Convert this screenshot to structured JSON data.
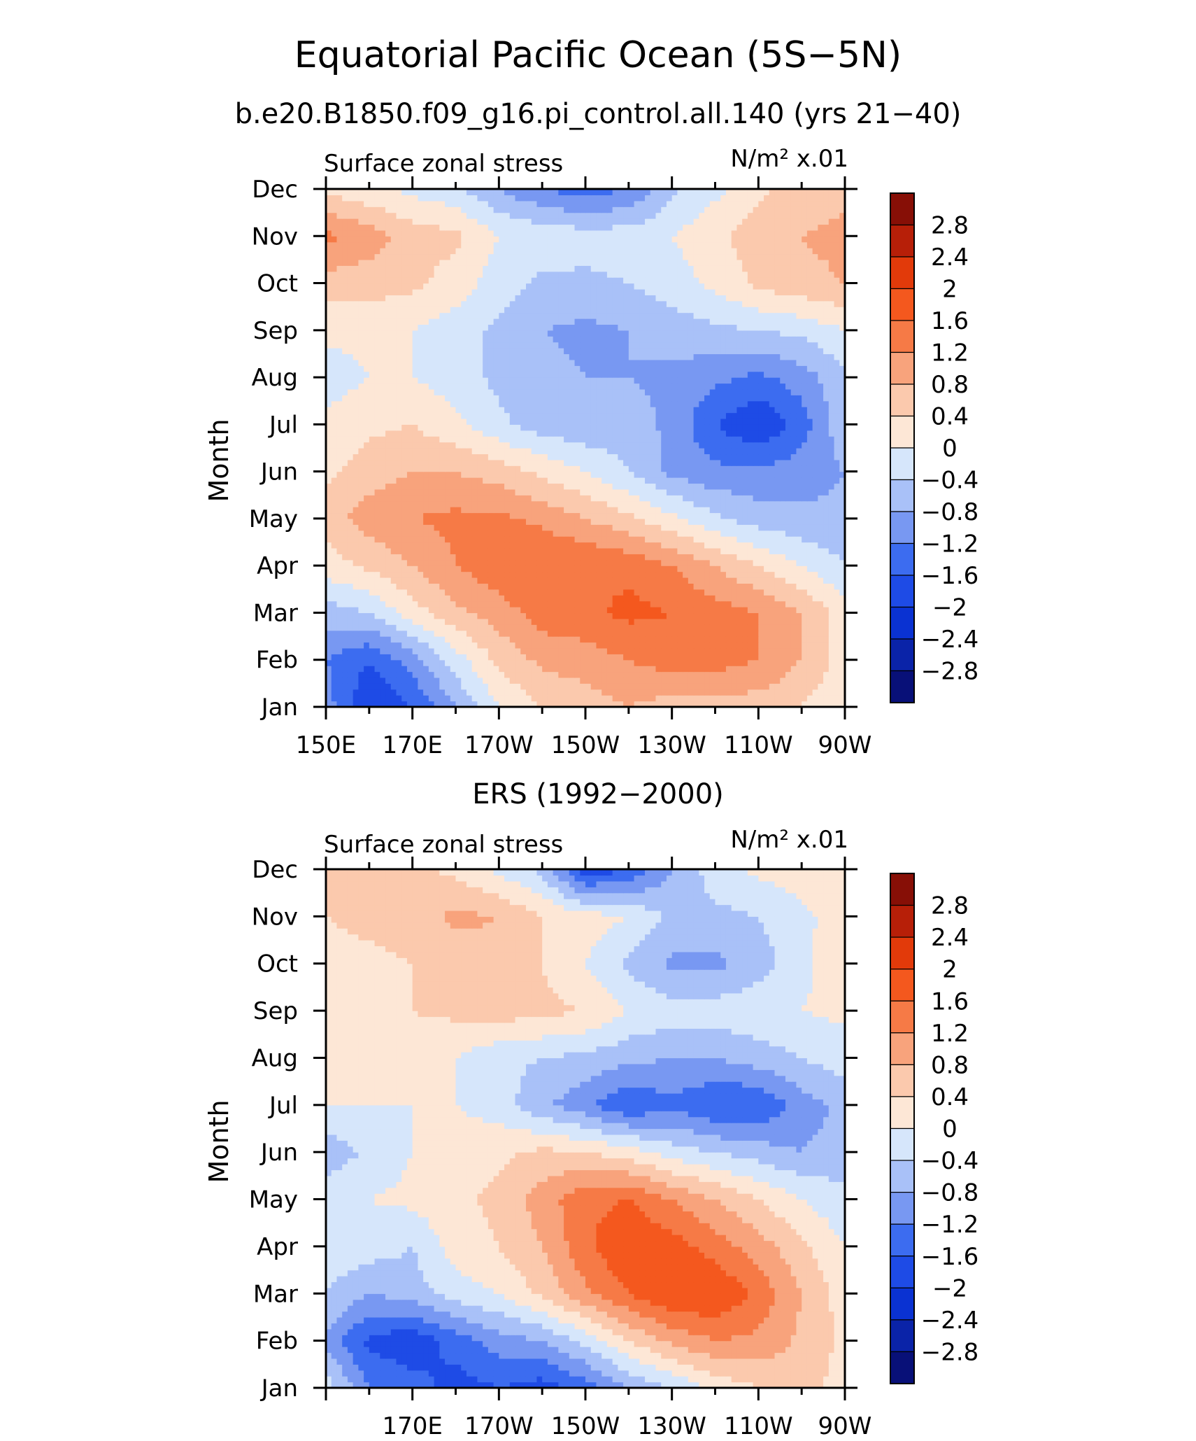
{
  "title": "Equatorial Pacific Ocean (5S−5N)",
  "colorbar_levels": [
    "2.8",
    "2.4",
    "2",
    "1.6",
    "1.2",
    "0.8",
    "0.4",
    "0",
    "−0.4",
    "−0.8",
    "−1.2",
    "−1.6",
    "−2",
    "−2.4",
    "−2.8"
  ],
  "palette": {
    "n_3.0": "#081078",
    "n_2.6": "#0a23a8",
    "n_2.2": "#0a32d2",
    "n_1.8": "#1e4be6",
    "n_1.4": "#3c6cf0",
    "n_1.0": "#7898f2",
    "n_0.6": "#a9c1f8",
    "n_0.2": "#d6e6fb",
    "p_0.2": "#fde7d6",
    "p_0.6": "#fbc9ad",
    "p_1.0": "#f8a37c",
    "p_1.4": "#f67a46",
    "p_1.8": "#f4581e",
    "p_2.2": "#e23a0a",
    "p_2.6": "#b71f08",
    "p_3.0": "#870f06"
  },
  "chart_data": [
    {
      "type": "heatmap",
      "title": "b.e20.B1850.f09_g16.pi_control.all.140 (yrs 21−40)",
      "left_label": "Surface zonal stress",
      "right_label": "N/m² x.01",
      "ylabel": "Month",
      "xlabel": "",
      "x_labels": [
        "150E",
        "170E",
        "170W",
        "150W",
        "130W",
        "110W",
        "90W"
      ],
      "x_label_lon": [
        150,
        170,
        190,
        210,
        230,
        250,
        270
      ],
      "xlim": [
        150,
        270
      ],
      "months": [
        "Jan",
        "Feb",
        "Mar",
        "Apr",
        "May",
        "Jun",
        "Jul",
        "Aug",
        "Sep",
        "Oct",
        "Nov",
        "Dec"
      ],
      "lon": [
        150,
        160,
        170,
        180,
        190,
        200,
        210,
        220,
        230,
        240,
        250,
        260,
        270
      ],
      "values": [
        [
          -1.0,
          -2.0,
          -1.6,
          -0.8,
          0.0,
          0.4,
          0.6,
          0.8,
          0.6,
          0.6,
          0.6,
          0.4,
          0.0
        ],
        [
          -1.2,
          -1.6,
          -1.0,
          -0.2,
          0.5,
          0.9,
          1.0,
          1.2,
          1.4,
          1.4,
          1.2,
          0.8,
          0.2
        ],
        [
          -0.6,
          -0.4,
          0.2,
          0.7,
          1.0,
          1.4,
          1.5,
          1.7,
          1.6,
          1.4,
          1.2,
          0.8,
          0.2
        ],
        [
          0.2,
          0.5,
          0.8,
          1.2,
          1.5,
          1.6,
          1.6,
          1.5,
          1.2,
          0.8,
          0.4,
          0.0,
          -0.4
        ],
        [
          0.6,
          1.0,
          1.2,
          1.3,
          1.3,
          1.1,
          0.8,
          0.5,
          0.1,
          -0.3,
          -0.6,
          -0.7,
          -0.7
        ],
        [
          0.3,
          0.6,
          0.8,
          0.8,
          0.6,
          0.3,
          0.0,
          -0.4,
          -0.9,
          -1.1,
          -1.1,
          -1.0,
          -0.8
        ],
        [
          0.1,
          0.3,
          0.4,
          0.1,
          -0.3,
          -0.6,
          -0.7,
          -0.6,
          -0.9,
          -1.6,
          -2.0,
          -1.4,
          -0.5
        ],
        [
          -0.2,
          0.0,
          0.0,
          -0.2,
          -0.5,
          -0.7,
          -0.8,
          -0.8,
          -0.9,
          -1.1,
          -1.3,
          -1.0,
          -0.5
        ],
        [
          0.1,
          0.1,
          0.0,
          -0.2,
          -0.5,
          -0.8,
          -0.9,
          -0.8,
          -0.6,
          -0.5,
          -0.4,
          -0.3,
          0.0
        ],
        [
          0.6,
          0.6,
          0.5,
          0.2,
          -0.2,
          -0.5,
          -0.5,
          -0.4,
          -0.2,
          0.1,
          0.5,
          0.7,
          0.8
        ],
        [
          1.3,
          1.0,
          0.6,
          0.5,
          0.0,
          -0.1,
          -0.2,
          -0.2,
          0.0,
          0.3,
          0.6,
          0.8,
          0.9
        ],
        [
          0.3,
          0.1,
          -0.1,
          -0.3,
          -0.8,
          -1.2,
          -1.4,
          -1.2,
          -0.5,
          -0.1,
          0.3,
          0.6,
          0.7
        ]
      ],
      "levels": [
        -2.8,
        -2.4,
        -2.0,
        -1.6,
        -1.2,
        -0.8,
        -0.4,
        0,
        0.4,
        0.8,
        1.2,
        1.6,
        2.0,
        2.4,
        2.8
      ]
    },
    {
      "type": "heatmap",
      "title": "ERS (1992−2000)",
      "left_label": "Surface zonal stress",
      "right_label": "N/m² x.01",
      "ylabel": "Month",
      "xlabel": "",
      "x_labels": [
        "170E",
        "170W",
        "150W",
        "130W",
        "110W",
        "90W"
      ],
      "x_label_lon": [
        170,
        190,
        210,
        230,
        250,
        270
      ],
      "xlim": [
        150,
        270
      ],
      "months": [
        "Jan",
        "Feb",
        "Mar",
        "Apr",
        "May",
        "Jun",
        "Jul",
        "Aug",
        "Sep",
        "Oct",
        "Nov",
        "Dec"
      ],
      "lon": [
        150,
        160,
        170,
        180,
        190,
        200,
        210,
        220,
        230,
        240,
        250,
        260,
        270
      ],
      "values": [
        [
          -0.2,
          -1.2,
          -1.4,
          -1.8,
          -1.6,
          -1.8,
          -1.4,
          -0.8,
          -0.4,
          0.1,
          0.4,
          0.6,
          0.2
        ],
        [
          -0.9,
          -1.7,
          -1.9,
          -1.4,
          -1.0,
          -0.8,
          -0.3,
          0.4,
          0.9,
          1.2,
          1.1,
          0.7,
          0.3
        ],
        [
          -0.4,
          -0.8,
          -0.6,
          -0.2,
          0.0,
          0.5,
          1.1,
          1.6,
          2.0,
          2.0,
          1.5,
          0.8,
          0.2
        ],
        [
          -0.1,
          -0.2,
          -0.4,
          0.2,
          0.4,
          0.8,
          1.5,
          2.0,
          1.8,
          1.4,
          1.0,
          0.5,
          0.0
        ],
        [
          -0.1,
          0.0,
          0.1,
          0.3,
          0.5,
          1.0,
          1.5,
          1.6,
          1.2,
          0.8,
          0.4,
          0.0,
          -0.3
        ],
        [
          -0.7,
          -0.3,
          0.0,
          0.2,
          0.3,
          0.5,
          0.4,
          0.2,
          -0.2,
          -0.4,
          -0.6,
          -0.8,
          -0.6
        ],
        [
          0.0,
          0.0,
          0.0,
          0.0,
          -0.2,
          -0.7,
          -1.1,
          -1.6,
          -1.3,
          -1.6,
          -1.6,
          -1.0,
          -0.7
        ],
        [
          0.2,
          0.3,
          0.2,
          0.0,
          -0.3,
          -0.4,
          -0.5,
          -0.7,
          -0.8,
          -0.8,
          -0.6,
          -0.4,
          -0.2
        ],
        [
          0.3,
          0.4,
          0.4,
          0.5,
          0.6,
          0.5,
          0.4,
          0.0,
          -0.2,
          -0.2,
          -0.1,
          0.0,
          0.1
        ],
        [
          0.3,
          0.3,
          0.4,
          0.5,
          0.7,
          0.4,
          0.0,
          -0.5,
          -0.9,
          -0.9,
          -0.6,
          -0.1,
          0.3
        ],
        [
          0.4,
          0.5,
          0.6,
          0.9,
          0.8,
          0.4,
          0.2,
          0.0,
          -0.5,
          -0.5,
          -0.4,
          -0.1,
          0.2
        ],
        [
          0.6,
          0.8,
          0.5,
          0.3,
          -0.1,
          -0.5,
          -1.9,
          -1.6,
          -0.8,
          -0.2,
          0.1,
          0.2,
          0.2
        ]
      ],
      "levels": [
        -2.8,
        -2.4,
        -2.0,
        -1.6,
        -1.2,
        -0.8,
        -0.4,
        0,
        0.4,
        0.8,
        1.2,
        1.6,
        2.0,
        2.4,
        2.8
      ]
    }
  ]
}
